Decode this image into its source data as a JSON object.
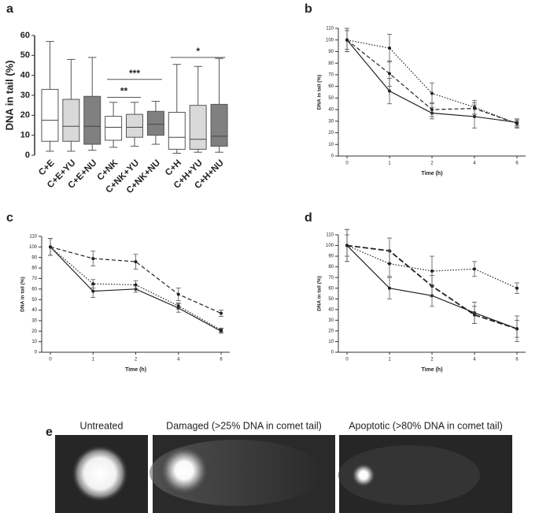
{
  "chart_data": [
    {
      "type": "box",
      "panel_label": "a",
      "y_label": "DNA in tail (%)",
      "categories": [
        "C+E",
        "C+E+YU",
        "C+E+NU",
        "C+NK",
        "C+NK+YU",
        "C+NK+NU",
        "C+H",
        "C+H+YU",
        "C+H+NU"
      ],
      "colors": [
        "#ffffff",
        "#d9d9d9",
        "#808080",
        "#ffffff",
        "#d9d9d9",
        "#808080",
        "#ffffff",
        "#d9d9d9",
        "#808080"
      ],
      "boxes": [
        {
          "low": 2,
          "q1": 7,
          "median": 17.5,
          "q3": 33,
          "high": 57
        },
        {
          "low": 2,
          "q1": 7,
          "median": 14.5,
          "q3": 28,
          "high": 48
        },
        {
          "low": 2.5,
          "q1": 5.5,
          "median": 14.5,
          "q3": 29.5,
          "high": 49
        },
        {
          "low": 4,
          "q1": 7.5,
          "median": 14,
          "q3": 19.5,
          "high": 26.5
        },
        {
          "low": 4.5,
          "q1": 9,
          "median": 14,
          "q3": 20.5,
          "high": 26.5
        },
        {
          "low": 5.5,
          "q1": 10,
          "median": 15.5,
          "q3": 22,
          "high": 27
        },
        {
          "low": 1,
          "q1": 3,
          "median": 9,
          "q3": 21.5,
          "high": 45.5
        },
        {
          "low": 1.5,
          "q1": 3,
          "median": 8,
          "q3": 25,
          "high": 44.5
        },
        {
          "low": 1.5,
          "q1": 4.5,
          "median": 9.5,
          "q3": 25.5,
          "high": 48.5
        }
      ],
      "annotations": [
        {
          "text": "***",
          "from": 3,
          "to": 5,
          "y": 38
        },
        {
          "text": "**",
          "from": 3,
          "to": 4,
          "y": 29
        },
        {
          "text": "*",
          "from": 6,
          "to": 8,
          "y": 49
        }
      ],
      "ylim": [
        0,
        60
      ],
      "yticks": [
        0,
        10,
        20,
        30,
        40,
        50,
        60
      ]
    },
    {
      "type": "line",
      "panel_label": "b",
      "x_label": "Time (h)",
      "y_label": "DNA in tail (%)",
      "categories": [
        "0",
        "1",
        "2",
        "4",
        "6"
      ],
      "series": [
        {
          "color": "#222222",
          "dash": "solid",
          "values": [
            100,
            56,
            37,
            34,
            29
          ],
          "errors": [
            10,
            11,
            5,
            10,
            3
          ]
        },
        {
          "color": "#222222",
          "dash": "dashed",
          "values": [
            100,
            71,
            40,
            41,
            28
          ],
          "errors": [
            8,
            11,
            6,
            5,
            3
          ]
        },
        {
          "color": "#222222",
          "dash": "dotted",
          "values": [
            100,
            93,
            54,
            42,
            28
          ],
          "errors": [
            10,
            12,
            9,
            6,
            4
          ]
        }
      ],
      "ylim": [
        0,
        110
      ],
      "yticks": [
        0,
        10,
        20,
        30,
        40,
        50,
        60,
        70,
        80,
        90,
        100,
        110
      ]
    },
    {
      "type": "line",
      "panel_label": "c",
      "x_label": "Time (h)",
      "y_label": "DNA in tail (%)",
      "categories": [
        "0",
        "1",
        "2",
        "4",
        "6"
      ],
      "series": [
        {
          "color": "#222222",
          "dash": "solid",
          "values": [
            100,
            58,
            60,
            42,
            20
          ],
          "errors": [
            8,
            6,
            3,
            4,
            2
          ]
        },
        {
          "color": "#222222",
          "dash": "dotted",
          "values": [
            100,
            65,
            64,
            44,
            21
          ],
          "errors": [
            8,
            4,
            4,
            3,
            2
          ]
        },
        {
          "color": "#222222",
          "dash": "dashed",
          "values": [
            100,
            89,
            86,
            55,
            37
          ],
          "errors": [
            8,
            7,
            7,
            6,
            3
          ]
        }
      ],
      "ylim": [
        0,
        110
      ],
      "yticks": [
        0,
        10,
        20,
        30,
        40,
        50,
        60,
        70,
        80,
        90,
        100,
        110
      ]
    },
    {
      "type": "line",
      "panel_label": "d",
      "x_label": "Time (h)",
      "y_label": "DNA in tail (%)",
      "categories": [
        "0",
        "1",
        "2",
        "4",
        "6"
      ],
      "series": [
        {
          "color": "#222222",
          "dash": "solid",
          "values": [
            100,
            60,
            53,
            37,
            22
          ],
          "errors": [
            10,
            10,
            10,
            10,
            8
          ]
        },
        {
          "color": "#222222",
          "dash": "heavy-dashed",
          "values": [
            100,
            95,
            62,
            35,
            22
          ],
          "errors": [
            15,
            12,
            10,
            8,
            12
          ]
        },
        {
          "color": "#222222",
          "dash": "dotted",
          "values": [
            100,
            83,
            76,
            78,
            60
          ],
          "errors": [
            15,
            12,
            14,
            7,
            5
          ]
        }
      ],
      "ylim": [
        0,
        110
      ],
      "yticks": [
        0,
        10,
        20,
        30,
        40,
        50,
        60,
        70,
        80,
        90,
        100,
        110
      ]
    }
  ],
  "panel_e": {
    "label": "e",
    "captions": [
      "Untreated",
      "Damaged (>25% DNA in comet tail)",
      "Apoptotic (>80% DNA in comet tail)"
    ]
  }
}
